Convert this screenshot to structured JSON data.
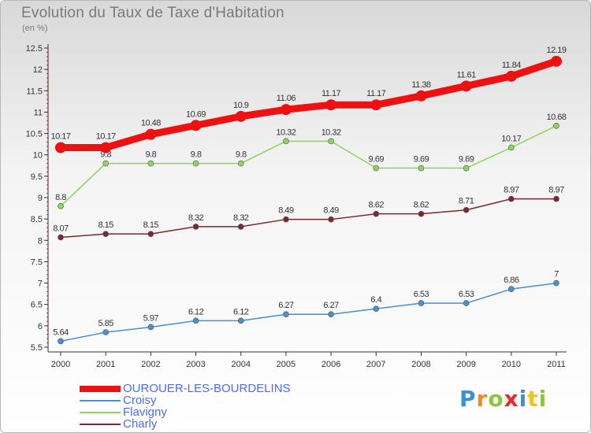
{
  "chart_data": {
    "type": "line",
    "title": "Evolution du Taux de Taxe d'Habitation",
    "subtitle": "(en %)",
    "x": [
      "2000",
      "2001",
      "2002",
      "2003",
      "2004",
      "2005",
      "2006",
      "2007",
      "2008",
      "2009",
      "2010",
      "2011"
    ],
    "ylim": [
      5.5,
      12.5
    ],
    "yticks": [
      5.5,
      6,
      6.5,
      7,
      7.5,
      8,
      8.5,
      9,
      9.5,
      10,
      10.5,
      11,
      11.5,
      12,
      12.5
    ],
    "ytick_labels": [
      "5.5",
      "6",
      "6.5",
      "7",
      "7.5",
      "8",
      "8.5",
      "9",
      "9.5",
      "10",
      "10.5",
      "11",
      "11.5",
      "12",
      "12.5"
    ],
    "grid": false,
    "legend_position": "bottom-left",
    "series": [
      {
        "name": "OUROUER-LES-BOURDELINS",
        "color": "#ee1111",
        "thick": true,
        "values": [
          10.17,
          10.17,
          10.48,
          10.69,
          10.9,
          11.06,
          11.17,
          11.17,
          11.38,
          11.61,
          11.84,
          12.19
        ],
        "labels": [
          "10.17",
          "10.17",
          "10.48",
          "10.69",
          "10.9",
          "11.06",
          "11.17",
          "11.17",
          "11.38",
          "11.61",
          "11.84",
          "12.19"
        ]
      },
      {
        "name": "Croisy",
        "color": "#4a8fd1",
        "thick": false,
        "values": [
          5.64,
          5.85,
          5.97,
          6.12,
          6.12,
          6.27,
          6.27,
          6.4,
          6.53,
          6.53,
          6.86,
          7
        ],
        "labels": [
          "5.64",
          "5.85",
          "5.97",
          "6.12",
          "6.12",
          "6.27",
          "6.27",
          "6.4",
          "6.53",
          "6.53",
          "6.86",
          "7"
        ]
      },
      {
        "name": "Flavigny",
        "color": "#8cd65a",
        "thick": false,
        "values": [
          8.8,
          9.8,
          9.8,
          9.8,
          9.8,
          10.32,
          10.32,
          9.69,
          9.69,
          9.69,
          10.17,
          10.68
        ],
        "labels": [
          "8.8",
          "9.8",
          "9.8",
          "9.8",
          "9.8",
          "10.32",
          "10.32",
          "9.69",
          "9.69",
          "9.69",
          "10.17",
          "10.68"
        ]
      },
      {
        "name": "Charly",
        "color": "#7a2a2e",
        "thick": false,
        "values": [
          8.07,
          8.15,
          8.15,
          8.32,
          8.32,
          8.49,
          8.49,
          8.62,
          8.62,
          8.71,
          8.97,
          8.97
        ],
        "labels": [
          "8.07",
          "8.15",
          "8.15",
          "8.32",
          "8.32",
          "8.49",
          "8.49",
          "8.62",
          "8.62",
          "8.71",
          "8.97",
          "8.97"
        ]
      }
    ]
  },
  "legend": {
    "items": [
      {
        "label": "OUROUER-LES-BOURDELINS",
        "color": "#ee1111",
        "thick": true
      },
      {
        "label": "Croisy",
        "color": "#4a8fd1",
        "thick": false
      },
      {
        "label": "Flavigny",
        "color": "#8cd65a",
        "thick": false
      },
      {
        "label": "Charly",
        "color": "#7a2a2e",
        "thick": false
      }
    ]
  },
  "logo": {
    "text": "Proxiti",
    "letters": [
      {
        "ch": "P",
        "color": "#3d8fd6"
      },
      {
        "ch": "r",
        "color": "#f08c1e"
      },
      {
        "ch": "o",
        "color": "#8cc63f"
      },
      {
        "ch": "x",
        "color": "#e8282b"
      },
      {
        "ch": "i",
        "color": "#3d8fd6"
      },
      {
        "ch": "t",
        "color": "#f0c419"
      },
      {
        "ch": "i",
        "color": "#8cc63f"
      }
    ]
  }
}
